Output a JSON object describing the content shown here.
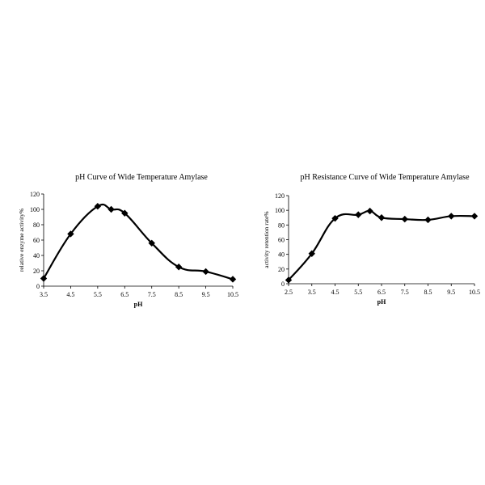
{
  "chart_data": [
    {
      "type": "line",
      "title": "pH Curve of Wide Temperature Amylase",
      "xlabel": "pH",
      "ylabel": "relative enzyme activity%",
      "xlim": [
        3.5,
        10.5
      ],
      "ylim": [
        0,
        120
      ],
      "xticks": [
        "3.5",
        "4.5",
        "5.5",
        "6.5",
        "7.5",
        "8.5",
        "9.5",
        "10.5"
      ],
      "yticks": [
        "0",
        "20",
        "40",
        "60",
        "80",
        "100",
        "120"
      ],
      "grid": false,
      "legend": "none",
      "marker": "diamond",
      "color": "#000000",
      "series": [
        {
          "x": [
            3.5,
            4.5,
            5.5,
            6.0,
            6.5,
            7.5,
            8.5,
            9.5,
            10.5
          ],
          "y": [
            10,
            68,
            104,
            100,
            95,
            56,
            25,
            19,
            9
          ]
        }
      ]
    },
    {
      "type": "line",
      "title": "pH Resistance Curve of Wide Temperature Amylase",
      "xlabel": "pH",
      "ylabel": "activity retention rate%",
      "xlim": [
        2.5,
        10.5
      ],
      "ylim": [
        0,
        120
      ],
      "xticks": [
        "2.5",
        "3.5",
        "4.5",
        "5.5",
        "6.5",
        "7.5",
        "8.5",
        "9.5",
        "10.5"
      ],
      "yticks": [
        "0",
        "20",
        "40",
        "60",
        "80",
        "100",
        "120"
      ],
      "grid": false,
      "legend": "none",
      "marker": "diamond",
      "color": "#000000",
      "series": [
        {
          "x": [
            2.5,
            3.5,
            4.5,
            5.5,
            6.0,
            6.5,
            7.5,
            8.5,
            9.5,
            10.5
          ],
          "y": [
            5,
            41,
            89,
            94,
            99,
            90,
            88,
            87,
            92,
            92
          ]
        }
      ]
    }
  ]
}
